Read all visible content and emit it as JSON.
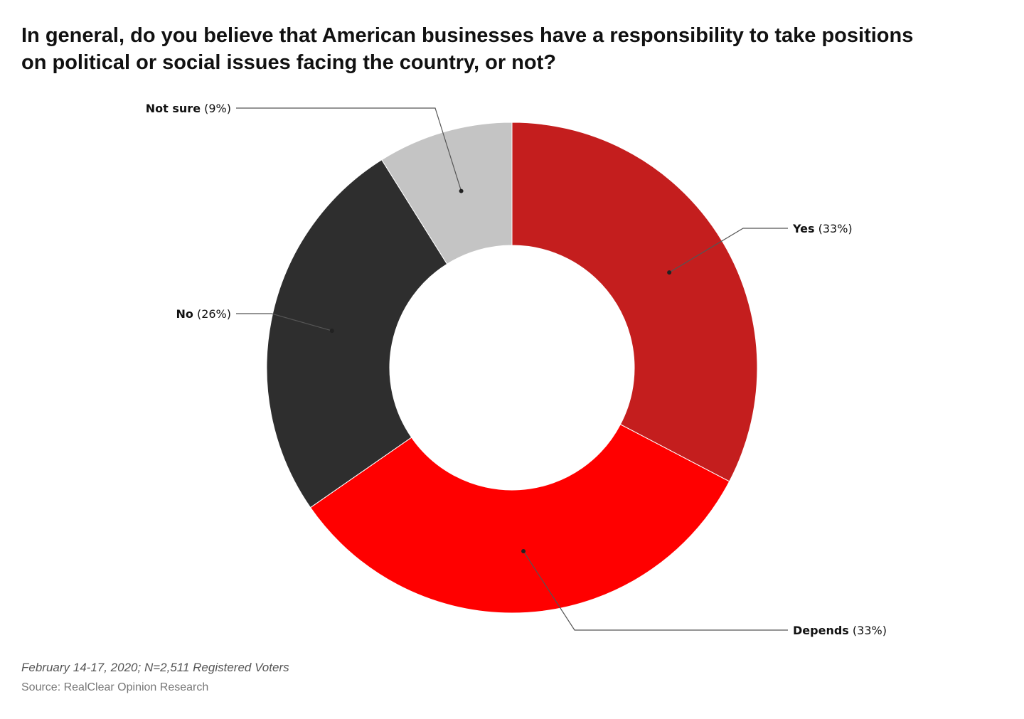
{
  "title": {
    "line1": "In general, do you believe that American businesses have a responsibility to take positions",
    "line2": "on political or social issues facing the country, or not?"
  },
  "footer": {
    "note": "February 14-17, 2020; N=2,511 Registered Voters",
    "source": "Source: RealClear Opinion Research"
  },
  "chart_data": {
    "type": "pie",
    "donut": true,
    "unit": "%",
    "slices": [
      {
        "label": "Yes",
        "value": 33,
        "value_label": "(33%)",
        "color": "#c41e1e"
      },
      {
        "label": "Depends",
        "value": 33,
        "value_label": "(33%)",
        "color": "#ff0000"
      },
      {
        "label": "No",
        "value": 26,
        "value_label": "(26%)",
        "color": "#2e2e2e"
      },
      {
        "label": "Not sure",
        "value": 9,
        "value_label": "(9%)",
        "color": "#c4c4c4"
      }
    ]
  }
}
